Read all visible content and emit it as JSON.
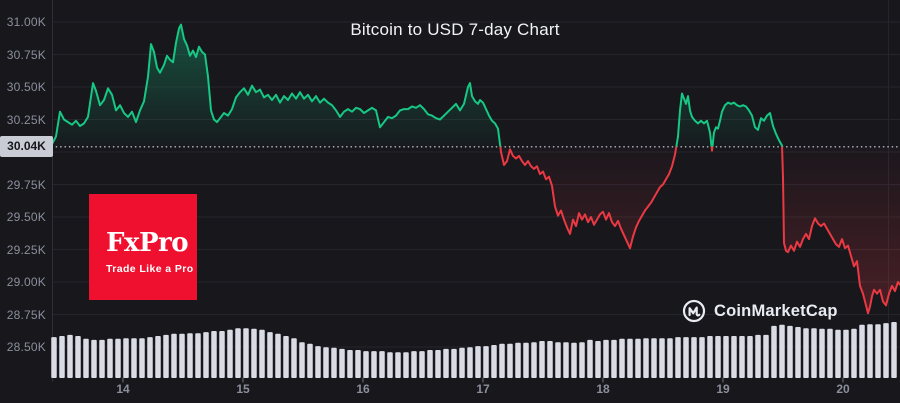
{
  "chart_data": {
    "type": "line",
    "title": "Bitcoin to USD 7-day Chart",
    "pair": "BTC/USD",
    "current_price_label": "30.04K",
    "baseline_price_k": 30.04,
    "grid": "horizontal",
    "legend": "none",
    "ylabel_unit": "K USD",
    "y_axis_labels": [
      "31.00K",
      "30.75K",
      "30.50K",
      "30.25K",
      "29.75K",
      "29.50K",
      "29.25K",
      "29.00K",
      "28.75K",
      "28.50K"
    ],
    "y_axis_values_k": [
      31.0,
      30.75,
      30.5,
      30.25,
      29.75,
      29.5,
      29.25,
      29.0,
      28.75,
      28.5
    ],
    "y_grid_values_k": [
      31.0,
      30.75,
      30.5,
      30.25,
      30.0,
      29.75,
      29.5,
      29.25,
      29.0,
      28.75,
      28.5
    ],
    "x_axis_labels": [
      "14",
      "15",
      "16",
      "17",
      "18",
      "19",
      "20"
    ],
    "x_axis_days": [
      14,
      15,
      16,
      17,
      18,
      19,
      20
    ],
    "x_range_days": [
      13.408,
      20.475
    ],
    "y_labeled_range_k": [
      28.5,
      31.0
    ],
    "colors": {
      "up": "#17c784",
      "down": "#ea3943",
      "grid": "#25252c",
      "axis": "#2e2e38",
      "tick": "#50535e",
      "label": "#8b8f9c",
      "dotted": "#c9ccd6",
      "volume": "#d9dce5",
      "badge_bg": "#c9ccd4",
      "badge_text": "#17171c",
      "background": "#17171c"
    },
    "price_points": [
      [
        13.408,
        30.06
      ],
      [
        13.442,
        30.12
      ],
      [
        13.475,
        30.31
      ],
      [
        13.508,
        30.25
      ],
      [
        13.542,
        30.23
      ],
      [
        13.575,
        30.21
      ],
      [
        13.608,
        30.24
      ],
      [
        13.642,
        30.2
      ],
      [
        13.675,
        30.22
      ],
      [
        13.708,
        30.27
      ],
      [
        13.75,
        30.53
      ],
      [
        13.775,
        30.47
      ],
      [
        13.808,
        30.36
      ],
      [
        13.842,
        30.4
      ],
      [
        13.875,
        30.49
      ],
      [
        13.908,
        30.44
      ],
      [
        13.942,
        30.32
      ],
      [
        13.975,
        30.36
      ],
      [
        14.008,
        30.3
      ],
      [
        14.042,
        30.27
      ],
      [
        14.075,
        30.31
      ],
      [
        14.108,
        30.23
      ],
      [
        14.142,
        30.32
      ],
      [
        14.175,
        30.39
      ],
      [
        14.208,
        30.58
      ],
      [
        14.233,
        30.83
      ],
      [
        14.258,
        30.77
      ],
      [
        14.283,
        30.65
      ],
      [
        14.308,
        30.61
      ],
      [
        14.342,
        30.67
      ],
      [
        14.367,
        30.74
      ],
      [
        14.392,
        30.71
      ],
      [
        14.417,
        30.69
      ],
      [
        14.442,
        30.84
      ],
      [
        14.467,
        30.95
      ],
      [
        14.483,
        30.98
      ],
      [
        14.508,
        30.87
      ],
      [
        14.533,
        30.82
      ],
      [
        14.558,
        30.74
      ],
      [
        14.583,
        30.78
      ],
      [
        14.608,
        30.73
      ],
      [
        14.633,
        30.81
      ],
      [
        14.658,
        30.77
      ],
      [
        14.683,
        30.75
      ],
      [
        14.708,
        30.58
      ],
      [
        14.733,
        30.32
      ],
      [
        14.758,
        30.25
      ],
      [
        14.783,
        30.23
      ],
      [
        14.808,
        30.26
      ],
      [
        14.842,
        30.3
      ],
      [
        14.875,
        30.28
      ],
      [
        14.908,
        30.33
      ],
      [
        14.942,
        30.42
      ],
      [
        14.975,
        30.46
      ],
      [
        15.008,
        30.49
      ],
      [
        15.042,
        30.44
      ],
      [
        15.075,
        30.51
      ],
      [
        15.108,
        30.46
      ],
      [
        15.142,
        30.48
      ],
      [
        15.175,
        30.42
      ],
      [
        15.208,
        30.44
      ],
      [
        15.242,
        30.4
      ],
      [
        15.275,
        30.44
      ],
      [
        15.308,
        30.38
      ],
      [
        15.342,
        30.43
      ],
      [
        15.375,
        30.4
      ],
      [
        15.408,
        30.45
      ],
      [
        15.442,
        30.41
      ],
      [
        15.475,
        30.46
      ],
      [
        15.508,
        30.41
      ],
      [
        15.542,
        30.44
      ],
      [
        15.575,
        30.39
      ],
      [
        15.608,
        30.43
      ],
      [
        15.642,
        30.38
      ],
      [
        15.675,
        30.41
      ],
      [
        15.708,
        30.38
      ],
      [
        15.742,
        30.36
      ],
      [
        15.775,
        30.32
      ],
      [
        15.808,
        30.27
      ],
      [
        15.842,
        30.31
      ],
      [
        15.875,
        30.33
      ],
      [
        15.908,
        30.31
      ],
      [
        15.942,
        30.34
      ],
      [
        15.975,
        30.33
      ],
      [
        16.008,
        30.3
      ],
      [
        16.042,
        30.32
      ],
      [
        16.075,
        30.34
      ],
      [
        16.108,
        30.32
      ],
      [
        16.142,
        30.19
      ],
      [
        16.175,
        30.23
      ],
      [
        16.208,
        30.27
      ],
      [
        16.242,
        30.26
      ],
      [
        16.275,
        30.28
      ],
      [
        16.308,
        30.32
      ],
      [
        16.342,
        30.33
      ],
      [
        16.375,
        30.33
      ],
      [
        16.408,
        30.35
      ],
      [
        16.442,
        30.34
      ],
      [
        16.475,
        30.36
      ],
      [
        16.508,
        30.33
      ],
      [
        16.542,
        30.29
      ],
      [
        16.575,
        30.28
      ],
      [
        16.608,
        30.26
      ],
      [
        16.642,
        30.25
      ],
      [
        16.675,
        30.28
      ],
      [
        16.708,
        30.31
      ],
      [
        16.742,
        30.34
      ],
      [
        16.775,
        30.37
      ],
      [
        16.808,
        30.32
      ],
      [
        16.842,
        30.37
      ],
      [
        16.875,
        30.5
      ],
      [
        16.892,
        30.53
      ],
      [
        16.908,
        30.43
      ],
      [
        16.933,
        30.39
      ],
      [
        16.958,
        30.37
      ],
      [
        16.975,
        30.4
      ],
      [
        17.0,
        30.38
      ],
      [
        17.025,
        30.33
      ],
      [
        17.05,
        30.28
      ],
      [
        17.075,
        30.24
      ],
      [
        17.1,
        30.22
      ],
      [
        17.125,
        30.18
      ],
      [
        17.15,
        30.0
      ],
      [
        17.175,
        29.9
      ],
      [
        17.2,
        29.93
      ],
      [
        17.225,
        30.02
      ],
      [
        17.25,
        29.97
      ],
      [
        17.275,
        29.95
      ],
      [
        17.3,
        29.97
      ],
      [
        17.325,
        29.93
      ],
      [
        17.35,
        29.9
      ],
      [
        17.375,
        29.93
      ],
      [
        17.4,
        29.89
      ],
      [
        17.425,
        29.87
      ],
      [
        17.45,
        29.89
      ],
      [
        17.475,
        29.83
      ],
      [
        17.5,
        29.85
      ],
      [
        17.525,
        29.79
      ],
      [
        17.55,
        29.81
      ],
      [
        17.575,
        29.74
      ],
      [
        17.6,
        29.58
      ],
      [
        17.625,
        29.51
      ],
      [
        17.65,
        29.55
      ],
      [
        17.675,
        29.48
      ],
      [
        17.7,
        29.42
      ],
      [
        17.725,
        29.37
      ],
      [
        17.75,
        29.48
      ],
      [
        17.775,
        29.43
      ],
      [
        17.8,
        29.53
      ],
      [
        17.825,
        29.48
      ],
      [
        17.85,
        29.52
      ],
      [
        17.875,
        29.46
      ],
      [
        17.9,
        29.5
      ],
      [
        17.925,
        29.44
      ],
      [
        17.95,
        29.48
      ],
      [
        17.975,
        29.52
      ],
      [
        18.0,
        29.54
      ],
      [
        18.025,
        29.48
      ],
      [
        18.05,
        29.53
      ],
      [
        18.075,
        29.46
      ],
      [
        18.1,
        29.43
      ],
      [
        18.125,
        29.47
      ],
      [
        18.15,
        29.41
      ],
      [
        18.175,
        29.36
      ],
      [
        18.2,
        29.31
      ],
      [
        18.225,
        29.26
      ],
      [
        18.25,
        29.35
      ],
      [
        18.275,
        29.42
      ],
      [
        18.3,
        29.47
      ],
      [
        18.325,
        29.51
      ],
      [
        18.35,
        29.55
      ],
      [
        18.375,
        29.58
      ],
      [
        18.4,
        29.61
      ],
      [
        18.425,
        29.65
      ],
      [
        18.45,
        29.69
      ],
      [
        18.475,
        29.73
      ],
      [
        18.5,
        29.75
      ],
      [
        18.525,
        29.79
      ],
      [
        18.55,
        29.83
      ],
      [
        18.575,
        29.89
      ],
      [
        18.6,
        29.98
      ],
      [
        18.625,
        30.12
      ],
      [
        18.642,
        30.32
      ],
      [
        18.658,
        30.45
      ],
      [
        18.675,
        30.41
      ],
      [
        18.692,
        30.37
      ],
      [
        18.708,
        30.43
      ],
      [
        18.725,
        30.32
      ],
      [
        18.742,
        30.27
      ],
      [
        18.767,
        30.24
      ],
      [
        18.792,
        30.22
      ],
      [
        18.817,
        30.24
      ],
      [
        18.842,
        30.22
      ],
      [
        18.867,
        30.24
      ],
      [
        18.892,
        30.15
      ],
      [
        18.908,
        30.01
      ],
      [
        18.925,
        30.15
      ],
      [
        18.942,
        30.19
      ],
      [
        18.958,
        30.18
      ],
      [
        18.975,
        30.24
      ],
      [
        18.992,
        30.31
      ],
      [
        19.017,
        30.36
      ],
      [
        19.042,
        30.38
      ],
      [
        19.067,
        30.37
      ],
      [
        19.092,
        30.38
      ],
      [
        19.117,
        30.36
      ],
      [
        19.142,
        30.35
      ],
      [
        19.167,
        30.36
      ],
      [
        19.192,
        30.35
      ],
      [
        19.217,
        30.32
      ],
      [
        19.242,
        30.28
      ],
      [
        19.267,
        30.19
      ],
      [
        19.292,
        30.17
      ],
      [
        19.317,
        30.26
      ],
      [
        19.342,
        30.24
      ],
      [
        19.367,
        30.28
      ],
      [
        19.392,
        30.3
      ],
      [
        19.417,
        30.2
      ],
      [
        19.442,
        30.14
      ],
      [
        19.467,
        30.09
      ],
      [
        19.492,
        30.05
      ],
      [
        19.5,
        29.8
      ],
      [
        19.508,
        29.3
      ],
      [
        19.525,
        29.24
      ],
      [
        19.542,
        29.23
      ],
      [
        19.567,
        29.28
      ],
      [
        19.592,
        29.24
      ],
      [
        19.617,
        29.31
      ],
      [
        19.642,
        29.27
      ],
      [
        19.667,
        29.33
      ],
      [
        19.692,
        29.37
      ],
      [
        19.717,
        29.33
      ],
      [
        19.742,
        29.43
      ],
      [
        19.767,
        29.49
      ],
      [
        19.792,
        29.45
      ],
      [
        19.817,
        29.43
      ],
      [
        19.842,
        29.45
      ],
      [
        19.867,
        29.41
      ],
      [
        19.892,
        29.37
      ],
      [
        19.917,
        29.33
      ],
      [
        19.942,
        29.29
      ],
      [
        19.967,
        29.27
      ],
      [
        19.992,
        29.33
      ],
      [
        20.017,
        29.26
      ],
      [
        20.042,
        29.28
      ],
      [
        20.067,
        29.2
      ],
      [
        20.092,
        29.12
      ],
      [
        20.117,
        29.16
      ],
      [
        20.142,
        28.97
      ],
      [
        20.167,
        28.91
      ],
      [
        20.192,
        28.82
      ],
      [
        20.208,
        28.76
      ],
      [
        20.225,
        28.81
      ],
      [
        20.242,
        28.89
      ],
      [
        20.258,
        28.94
      ],
      [
        20.283,
        28.91
      ],
      [
        20.308,
        28.94
      ],
      [
        20.333,
        28.85
      ],
      [
        20.358,
        28.82
      ],
      [
        20.383,
        28.91
      ],
      [
        20.408,
        28.97
      ],
      [
        20.433,
        28.93
      ],
      [
        20.458,
        29.0
      ],
      [
        20.475,
        28.98
      ]
    ],
    "volume_rel": [
      0.73,
      0.75,
      0.77,
      0.75,
      0.7,
      0.68,
      0.68,
      0.7,
      0.7,
      0.71,
      0.71,
      0.71,
      0.73,
      0.75,
      0.77,
      0.79,
      0.79,
      0.8,
      0.8,
      0.82,
      0.84,
      0.84,
      0.86,
      0.89,
      0.89,
      0.88,
      0.86,
      0.82,
      0.79,
      0.75,
      0.71,
      0.64,
      0.61,
      0.57,
      0.55,
      0.54,
      0.52,
      0.5,
      0.5,
      0.48,
      0.48,
      0.48,
      0.46,
      0.46,
      0.46,
      0.48,
      0.48,
      0.5,
      0.5,
      0.52,
      0.52,
      0.54,
      0.55,
      0.57,
      0.57,
      0.59,
      0.61,
      0.61,
      0.63,
      0.63,
      0.64,
      0.66,
      0.66,
      0.64,
      0.64,
      0.63,
      0.64,
      0.68,
      0.66,
      0.68,
      0.68,
      0.7,
      0.7,
      0.7,
      0.71,
      0.71,
      0.71,
      0.71,
      0.73,
      0.73,
      0.73,
      0.73,
      0.75,
      0.75,
      0.75,
      0.75,
      0.75,
      0.75,
      0.77,
      0.77,
      0.93,
      0.95,
      0.93,
      0.91,
      0.89,
      0.89,
      0.88,
      0.88,
      0.86,
      0.86,
      0.88,
      0.95,
      0.96,
      0.96,
      0.98,
      1.0
    ]
  },
  "sponsor": {
    "name": "FxPro",
    "tagline": "Trade Like a Pro",
    "color": "#ee102e"
  },
  "branding": {
    "name": "CoinMarketCap"
  }
}
